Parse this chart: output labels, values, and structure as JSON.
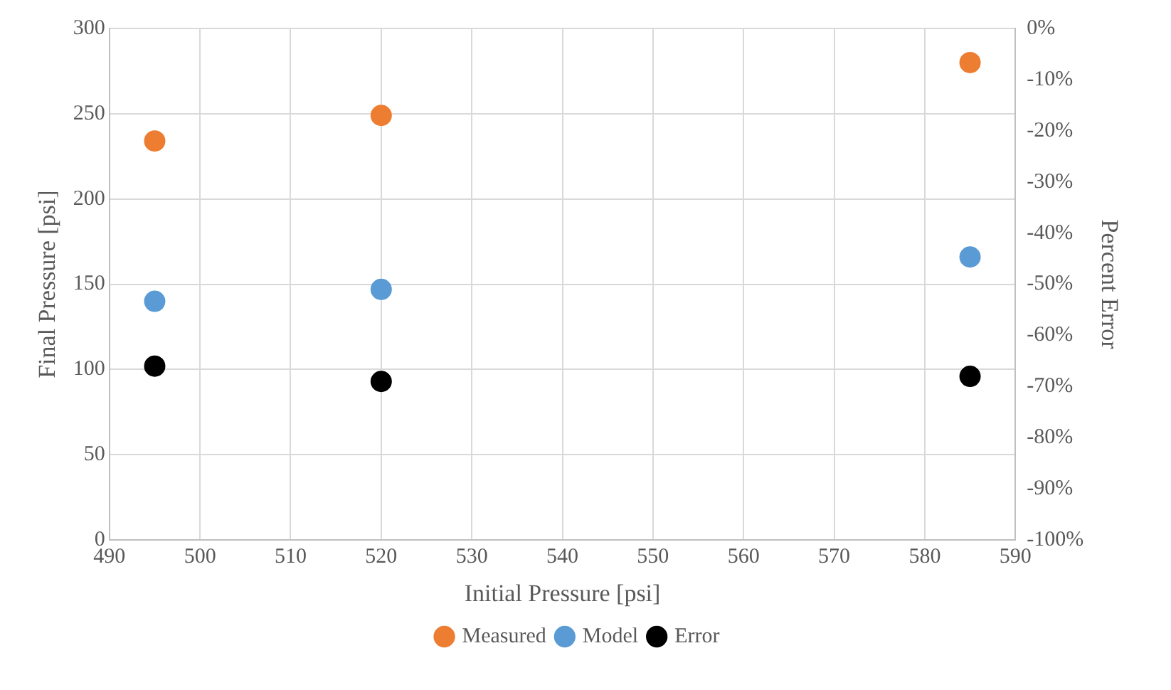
{
  "chart_data": {
    "type": "scatter",
    "xlabel": "Initial Pressure [psi]",
    "ylabel": "Final Pressure [psi]",
    "y2label": "Percent Error",
    "x": [
      495,
      520,
      585
    ],
    "series": [
      {
        "name": "Measured",
        "color": "#ed7d31",
        "values": [
          234,
          249,
          280
        ]
      },
      {
        "name": "Model",
        "color": "#5b9bd5",
        "values": [
          140,
          147,
          166
        ]
      },
      {
        "name": "Error",
        "color": "#000000",
        "values": [
          -66,
          -69,
          -68
        ],
        "axis": "y2"
      }
    ],
    "xlim": [
      490,
      590
    ],
    "xticks": [
      490,
      500,
      510,
      520,
      530,
      540,
      550,
      560,
      570,
      580,
      590
    ],
    "ylim": [
      0,
      300
    ],
    "yticks": [
      0,
      50,
      100,
      150,
      200,
      250,
      300
    ],
    "y2lim": [
      -100,
      0
    ],
    "y2ticks": [
      {
        "value": -100,
        "label": "-100%"
      },
      {
        "value": -90,
        "label": "-90%"
      },
      {
        "value": -80,
        "label": "-80%"
      },
      {
        "value": -70,
        "label": "-70%"
      },
      {
        "value": -60,
        "label": "-60%"
      },
      {
        "value": -50,
        "label": "-50%"
      },
      {
        "value": -40,
        "label": "-40%"
      },
      {
        "value": -30,
        "label": "-30%"
      },
      {
        "value": -20,
        "label": "-20%"
      },
      {
        "value": -10,
        "label": "-10%"
      },
      {
        "value": 0,
        "label": "0%"
      }
    ],
    "grid": true,
    "legend": "bottom",
    "marker": "circle"
  }
}
